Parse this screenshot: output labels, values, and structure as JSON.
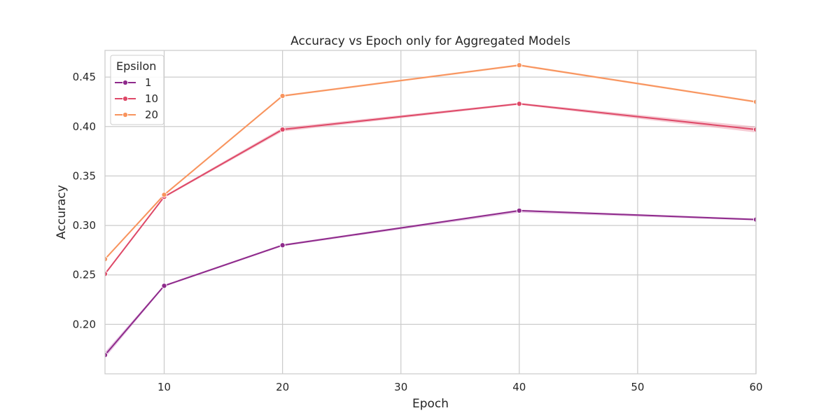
{
  "chart_data": {
    "type": "line",
    "title": "Accuracy vs Epoch only for Aggregated Models",
    "xlabel": "Epoch",
    "ylabel": "Accuracy",
    "xlim": [
      5,
      60
    ],
    "ylim": [
      0.15,
      0.477
    ],
    "x_ticks": [
      10,
      20,
      30,
      40,
      50,
      60
    ],
    "y_ticks": [
      0.2,
      0.25,
      0.3,
      0.35,
      0.4,
      0.45
    ],
    "x_tick_labels": [
      "10",
      "20",
      "30",
      "40",
      "50",
      "60"
    ],
    "y_tick_labels": [
      "0.20",
      "0.25",
      "0.30",
      "0.35",
      "0.40",
      "0.45"
    ],
    "grid": true,
    "legend": {
      "title": "Epsilon",
      "placement": "top-left"
    },
    "x": [
      5,
      10,
      20,
      40,
      60
    ],
    "series": [
      {
        "name": "1",
        "color": "#8e2a8b",
        "band_color": "#d9a5d6",
        "values": [
          0.169,
          0.239,
          0.28,
          0.315,
          0.306
        ],
        "lower": [
          0.166,
          0.238,
          0.279,
          0.313,
          0.305
        ],
        "upper": [
          0.172,
          0.24,
          0.281,
          0.316,
          0.307
        ]
      },
      {
        "name": "10",
        "color": "#de4968",
        "band_color": "#f0a8b8",
        "values": [
          0.251,
          0.329,
          0.397,
          0.423,
          0.397
        ],
        "lower": [
          0.25,
          0.328,
          0.395,
          0.422,
          0.394
        ],
        "upper": [
          0.252,
          0.33,
          0.399,
          0.424,
          0.4
        ]
      },
      {
        "name": "20",
        "color": "#f8945e",
        "band_color": "#fbc9ab",
        "values": [
          0.266,
          0.331,
          0.431,
          0.462,
          0.425
        ],
        "lower": [
          0.265,
          0.33,
          0.43,
          0.461,
          0.424
        ],
        "upper": [
          0.267,
          0.332,
          0.432,
          0.463,
          0.426
        ]
      }
    ]
  }
}
